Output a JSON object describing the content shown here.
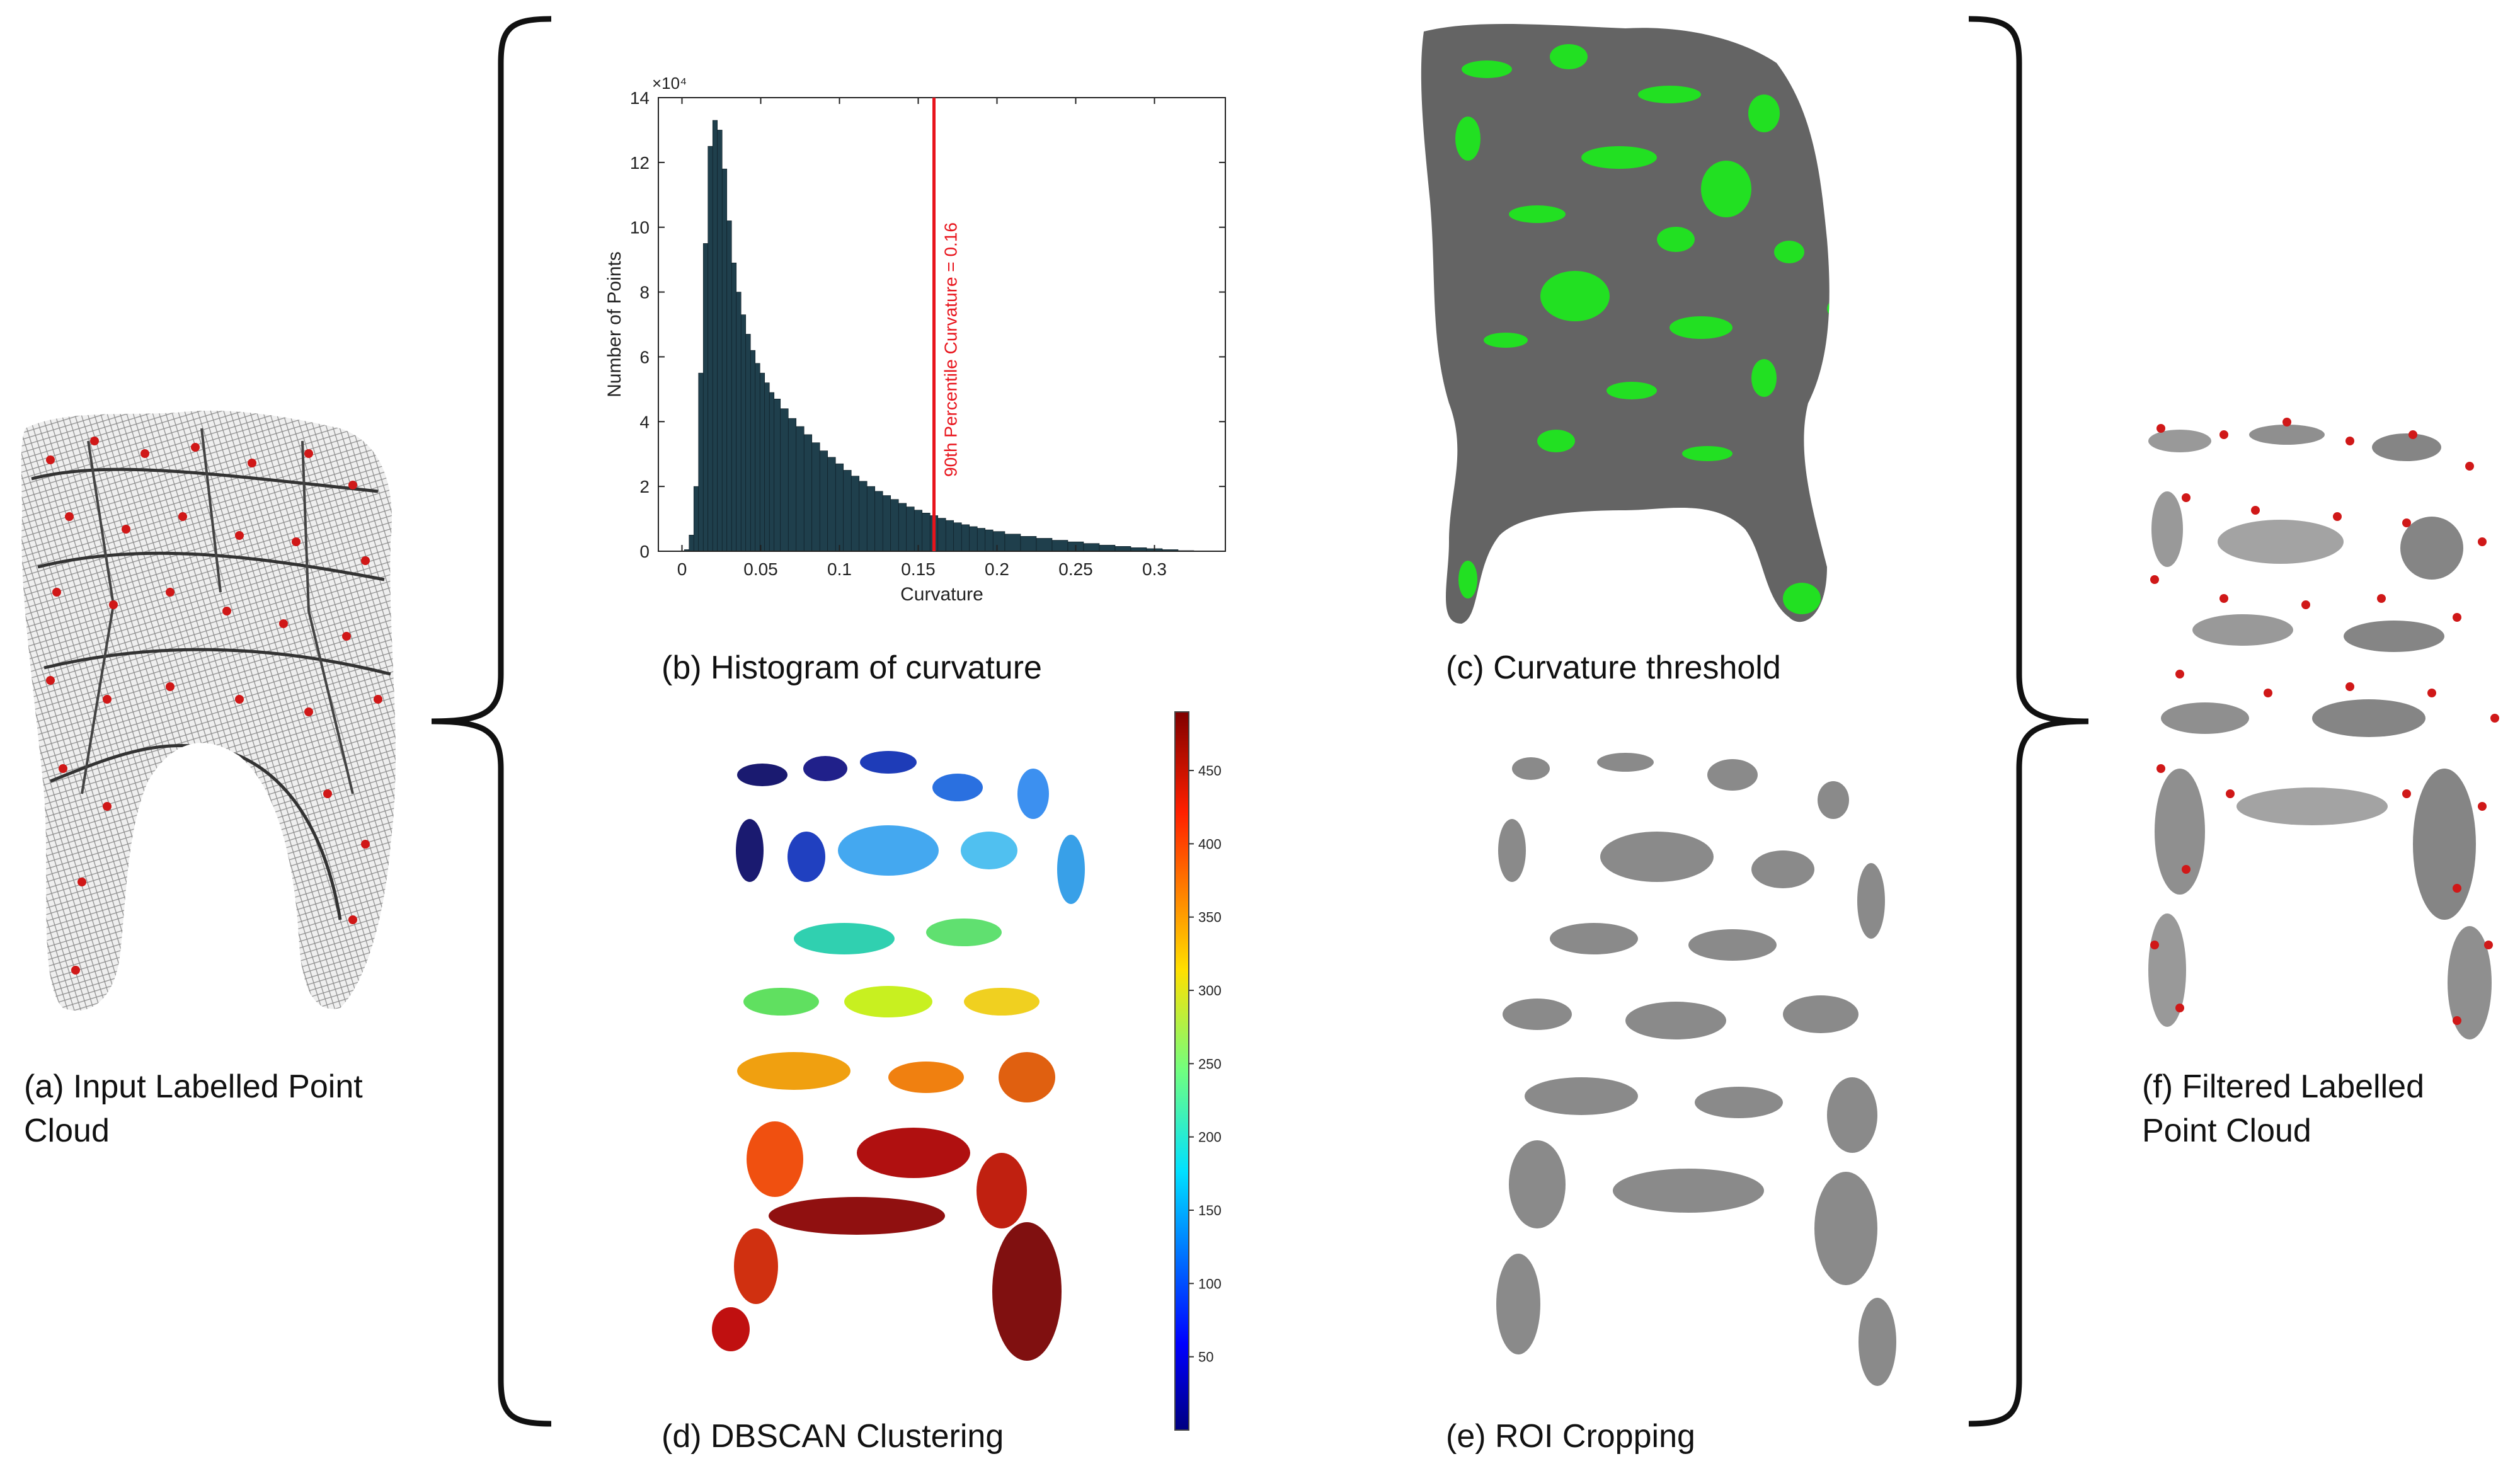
{
  "captions": {
    "a": "(a) Input Labelled Point\nCloud",
    "b": "(b) Histogram of curvature",
    "c": "(c) Curvature threshold",
    "d": "(d) DBSCAN Clustering",
    "e": "(e) ROI Cropping",
    "f": "(f) Filtered Labelled\nPoint Cloud"
  },
  "colors": {
    "mesh_bg": "#f2f2f2",
    "mesh_line": "#6a6a6a",
    "landmark": "#d01818",
    "surface_gray": "#646464",
    "high_curvature": "#22e022",
    "roi_gray": "#8a8a8a",
    "threshold_line": "#e8141c",
    "bar_fill": "#1f3f4c"
  },
  "chart_data": {
    "type": "bar",
    "xlabel": "Curvature",
    "ylabel": "Number of Points",
    "y_multiplier": "×10⁴",
    "xlim": [
      -0.015,
      0.345
    ],
    "ylim": [
      0,
      14
    ],
    "xticks": [
      0,
      0.05,
      0.1,
      0.15,
      0.2,
      0.25,
      0.3
    ],
    "xtick_labels": [
      "0",
      "0.05",
      "0.1",
      "0.15",
      "0.2",
      "0.25",
      "0.3"
    ],
    "yticks": [
      0,
      2,
      4,
      6,
      8,
      10,
      12,
      14
    ],
    "ytick_labels": [
      "0",
      "2",
      "4",
      "6",
      "8",
      "10",
      "12",
      "14"
    ],
    "bin_centers": [
      0.003,
      0.006,
      0.009,
      0.012,
      0.015,
      0.018,
      0.021,
      0.024,
      0.027,
      0.03,
      0.033,
      0.036,
      0.039,
      0.042,
      0.045,
      0.048,
      0.051,
      0.054,
      0.057,
      0.06,
      0.065,
      0.07,
      0.075,
      0.08,
      0.085,
      0.09,
      0.095,
      0.1,
      0.105,
      0.11,
      0.115,
      0.12,
      0.125,
      0.13,
      0.135,
      0.14,
      0.145,
      0.15,
      0.155,
      0.16,
      0.165,
      0.17,
      0.175,
      0.18,
      0.185,
      0.19,
      0.195,
      0.2,
      0.21,
      0.22,
      0.23,
      0.24,
      0.25,
      0.26,
      0.27,
      0.28,
      0.29,
      0.3,
      0.31,
      0.32
    ],
    "values": [
      0.05,
      0.5,
      2.0,
      5.5,
      9.5,
      12.5,
      13.3,
      13.0,
      11.8,
      10.2,
      8.9,
      8.0,
      7.3,
      6.7,
      6.2,
      5.8,
      5.5,
      5.2,
      4.9,
      4.7,
      4.4,
      4.1,
      3.85,
      3.6,
      3.35,
      3.1,
      2.9,
      2.7,
      2.5,
      2.32,
      2.16,
      2.0,
      1.85,
      1.72,
      1.6,
      1.48,
      1.37,
      1.27,
      1.18,
      1.1,
      1.02,
      0.95,
      0.88,
      0.82,
      0.76,
      0.71,
      0.66,
      0.61,
      0.53,
      0.46,
      0.4,
      0.34,
      0.29,
      0.24,
      0.19,
      0.15,
      0.11,
      0.08,
      0.05,
      0.02
    ],
    "threshold_x": 0.16,
    "annotation": "90th Percentile Curvature = 0.16"
  },
  "colorbar": {
    "range": [
      0,
      490
    ],
    "ticks": [
      50,
      100,
      150,
      200,
      250,
      300,
      350,
      400,
      450
    ],
    "tick_labels": [
      "50",
      "100",
      "150",
      "200",
      "250",
      "300",
      "350",
      "400",
      "450"
    ]
  }
}
